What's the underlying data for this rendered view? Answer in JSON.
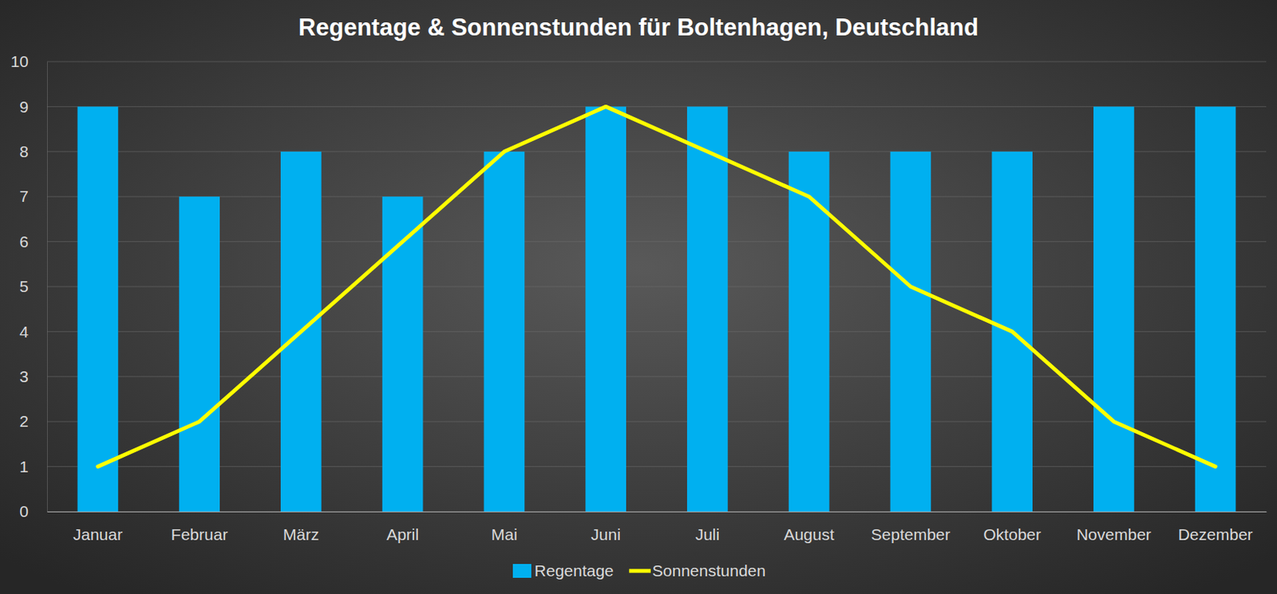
{
  "chart_data": {
    "type": "bar",
    "title": "Regentage & Sonnenstunden für Boltenhagen, Deutschland",
    "categories": [
      "Januar",
      "Februar",
      "März",
      "April",
      "Mai",
      "Juni",
      "Juli",
      "August",
      "September",
      "Oktober",
      "November",
      "Dezember"
    ],
    "series": [
      {
        "name": "Regentage",
        "type": "bar",
        "color": "#00b0f0",
        "values": [
          9,
          7,
          8,
          7,
          8,
          9,
          9,
          8,
          8,
          8,
          9,
          9
        ]
      },
      {
        "name": "Sonnenstunden",
        "type": "line",
        "color": "#ffff00",
        "values": [
          1,
          2,
          4,
          6,
          8,
          9,
          8,
          7,
          5,
          4,
          2,
          1
        ]
      }
    ],
    "ylim": [
      0,
      10
    ],
    "yticks": [
      0,
      1,
      2,
      3,
      4,
      5,
      6,
      7,
      8,
      9,
      10
    ],
    "grid": true,
    "legend": "bottom"
  }
}
